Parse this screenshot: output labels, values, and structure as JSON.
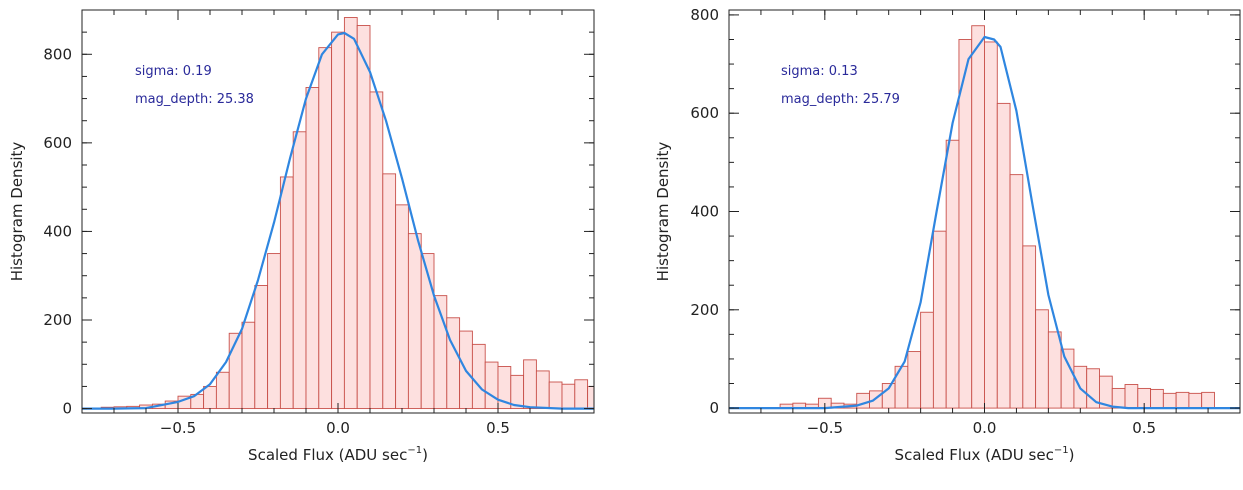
{
  "colors": {
    "bar_fill": "#fde0df",
    "bar_edge": "#c8504a",
    "fit_line": "#2f86e0",
    "annotation": "#2a2a9a",
    "axis": "#222222"
  },
  "chart_data": [
    {
      "type": "bar",
      "xlabel": "Scaled Flux (ADU sec",
      "xlabel_sup": "−1",
      "xlabel_close": ")",
      "ylabel": "Histogram Density",
      "xlim": [
        -0.8,
        0.8
      ],
      "ylim": [
        -10,
        900
      ],
      "xticks": [
        -0.5,
        0.0,
        0.5
      ],
      "xtick_labels": [
        "−0.5",
        "0.0",
        "0.5"
      ],
      "yticks": [
        0,
        200,
        400,
        600,
        800
      ],
      "ytick_labels": [
        "0",
        "200",
        "400",
        "600",
        "800"
      ],
      "bin_width": 0.04,
      "bins_start": -0.74,
      "values": [
        3,
        4,
        5,
        8,
        10,
        17,
        28,
        32,
        50,
        82,
        170,
        195,
        278,
        350,
        523,
        625,
        725,
        815,
        850,
        883,
        865,
        715,
        530,
        460,
        395,
        350,
        255,
        205,
        175,
        145,
        105,
        95,
        75,
        110,
        85,
        60,
        55,
        65,
        50,
        42
      ],
      "fit": {
        "x": [
          -0.8,
          -0.7,
          -0.6,
          -0.5,
          -0.45,
          -0.4,
          -0.35,
          -0.3,
          -0.25,
          -0.2,
          -0.15,
          -0.1,
          -0.05,
          0.0,
          0.02,
          0.05,
          0.1,
          0.15,
          0.2,
          0.25,
          0.3,
          0.35,
          0.4,
          0.45,
          0.5,
          0.55,
          0.6,
          0.7,
          0.8
        ],
        "y": [
          0,
          0,
          1,
          15,
          28,
          55,
          105,
          180,
          290,
          420,
          565,
          700,
          800,
          845,
          848,
          835,
          760,
          650,
          520,
          380,
          255,
          155,
          85,
          43,
          20,
          8,
          3,
          0,
          0
        ]
      },
      "annotations": [
        "sigma: 0.19",
        "mag_depth: 25.38"
      ]
    },
    {
      "type": "bar",
      "xlabel": "Scaled Flux (ADU sec",
      "xlabel_sup": "−1",
      "xlabel_close": ")",
      "ylabel": "Histogram Density",
      "xlim": [
        -0.8,
        0.8
      ],
      "ylim": [
        -10,
        810
      ],
      "xticks": [
        -0.5,
        0.0,
        0.5
      ],
      "xtick_labels": [
        "−0.5",
        "0.0",
        "0.5"
      ],
      "yticks": [
        0,
        200,
        400,
        600,
        800
      ],
      "ytick_labels": [
        "0",
        "200",
        "400",
        "600",
        "800"
      ],
      "bin_width": 0.04,
      "bins_start": -0.64,
      "values": [
        8,
        10,
        8,
        20,
        10,
        8,
        30,
        35,
        50,
        85,
        115,
        195,
        360,
        545,
        750,
        778,
        745,
        620,
        475,
        330,
        200,
        155,
        120,
        85,
        80,
        65,
        40,
        48,
        40,
        38,
        30,
        32,
        30,
        32
      ],
      "fit": {
        "x": [
          -0.8,
          -0.5,
          -0.4,
          -0.35,
          -0.3,
          -0.25,
          -0.2,
          -0.15,
          -0.1,
          -0.05,
          0.0,
          0.03,
          0.05,
          0.1,
          0.15,
          0.2,
          0.25,
          0.3,
          0.35,
          0.4,
          0.45,
          0.5,
          0.8
        ],
        "y": [
          0,
          0,
          5,
          15,
          40,
          95,
          215,
          400,
          580,
          710,
          755,
          750,
          735,
          605,
          415,
          230,
          105,
          40,
          12,
          3,
          0,
          0,
          0
        ]
      },
      "annotations": [
        "sigma: 0.13",
        "mag_depth: 25.79"
      ]
    }
  ]
}
